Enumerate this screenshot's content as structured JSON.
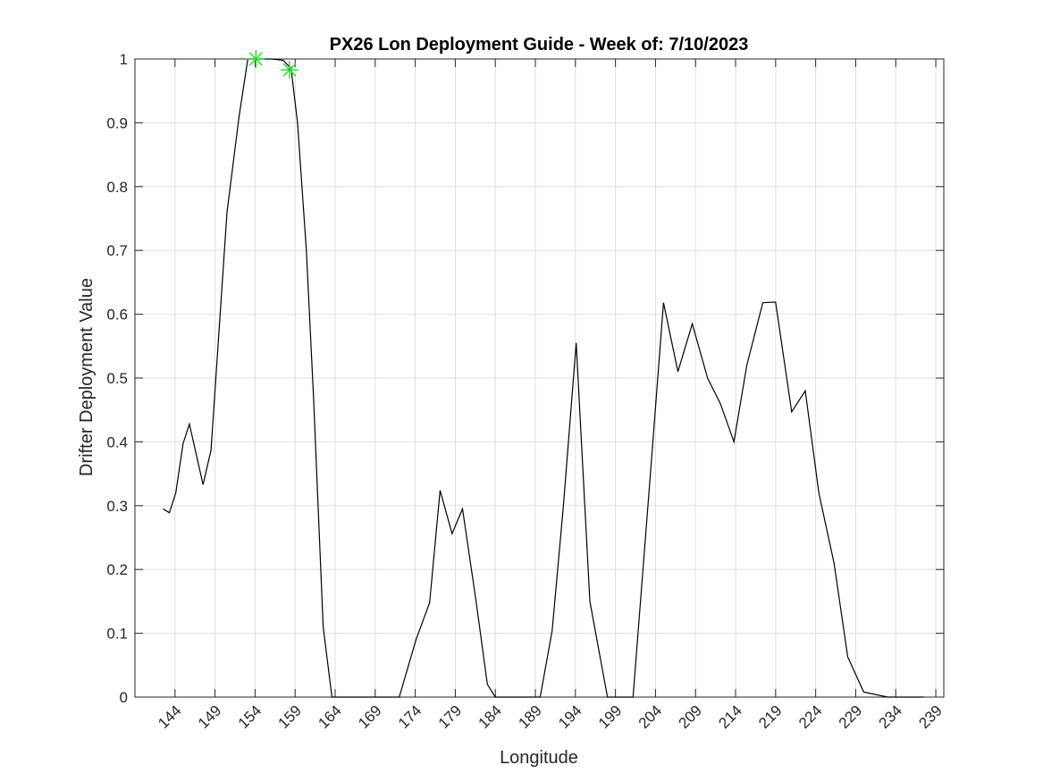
{
  "chart_data": {
    "type": "line",
    "title": "PX26 Lon Deployment Guide - Week of: 7/10/2023",
    "xlabel": "Longitude",
    "ylabel": "Drifter Deployment Value",
    "xlim": [
      139,
      240
    ],
    "ylim": [
      0,
      1
    ],
    "xticks": [
      144,
      149,
      154,
      159,
      164,
      169,
      174,
      179,
      184,
      189,
      194,
      199,
      204,
      209,
      214,
      219,
      224,
      229,
      234,
      239
    ],
    "yticks": [
      0,
      0.1,
      0.2,
      0.3,
      0.4,
      0.5,
      0.6,
      0.7,
      0.8,
      0.9,
      1
    ],
    "ytick_labels": [
      "0",
      "0.1",
      "0.2",
      "0.3",
      "0.4",
      "0.5",
      "0.6",
      "0.7",
      "0.8",
      "0.9",
      "1"
    ],
    "grid": true,
    "series": [
      {
        "color": "#000000",
        "x": [
          142.5,
          143.3,
          144.1,
          145.0,
          145.8,
          147.5,
          148.5,
          150.5,
          152.0,
          153.1,
          154.0,
          156.0,
          157.5,
          158.5,
          159.3,
          160.4,
          161.3,
          162.5,
          163.6,
          164.5,
          169.0,
          172.0,
          174.1,
          175.8,
          177.1,
          178.6,
          179.9,
          181.6,
          183.0,
          184.0,
          188.0,
          189.6,
          191.1,
          192.5,
          194.1,
          195.8,
          198.0,
          199.5,
          201.2,
          203.3,
          205.0,
          206.8,
          208.6,
          210.5,
          212.1,
          213.8,
          215.4,
          217.4,
          219.0,
          221.0,
          222.7,
          224.4,
          226.3,
          228.0,
          230.0,
          233.0,
          237.5
        ],
        "y": [
          0.295,
          0.289,
          0.32,
          0.397,
          0.428,
          0.333,
          0.387,
          0.76,
          0.91,
          1.0,
          1.0,
          1.0,
          0.998,
          0.985,
          0.9,
          0.7,
          0.47,
          0.11,
          0.0,
          0.0,
          0.0,
          0.0,
          0.09,
          0.148,
          0.324,
          0.256,
          0.295,
          0.15,
          0.02,
          0.0,
          0.0,
          0.0,
          0.104,
          0.3,
          0.555,
          0.15,
          0.0,
          0.0,
          0.0,
          0.34,
          0.618,
          0.51,
          0.585,
          0.5,
          0.46,
          0.4,
          0.52,
          0.618,
          0.619,
          0.447,
          0.48,
          0.32,
          0.21,
          0.063,
          0.008,
          0.0,
          0.0
        ]
      },
      {
        "color": "#22dd22",
        "x": [
          154.1,
          158.3
        ],
        "y": [
          1.0,
          0.983
        ]
      }
    ]
  }
}
